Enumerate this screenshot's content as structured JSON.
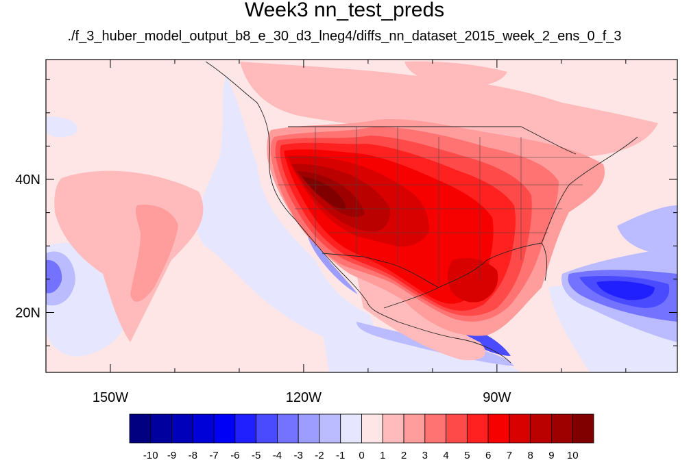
{
  "title": "Week3 nn_test_preds",
  "subtitle": "./f_3_huber_model_output_b8_e_30_d3_lneg4/diffs_nn_dataset_2015_week_2_ens_0_f_3",
  "map": {
    "lon_range": [
      -160,
      -62
    ],
    "lat_range": [
      11,
      58
    ],
    "lon_ticks": [
      {
        "value": -150,
        "label": "150W"
      },
      {
        "value": -120,
        "label": "120W"
      },
      {
        "value": -90,
        "label": "90W"
      }
    ],
    "lat_ticks": [
      {
        "value": 40,
        "label": "40N"
      },
      {
        "value": 20,
        "label": "20N"
      }
    ],
    "ocean_background_color": "#ffe6e6"
  },
  "colorbar": {
    "labels": [
      "-10",
      "-9",
      "-8",
      "-7",
      "-6",
      "-5",
      "-4",
      "-3",
      "-2",
      "-1",
      "0",
      "1",
      "2",
      "3",
      "4",
      "5",
      "6",
      "7",
      "8",
      "9",
      "10"
    ],
    "colors": [
      "#000080",
      "#00009e",
      "#0000bb",
      "#0000d9",
      "#0000f6",
      "#2020ff",
      "#4a4aff",
      "#7373ff",
      "#9d9dff",
      "#bbbbff",
      "#e6e6ff",
      "#ffe6e6",
      "#ffbbbb",
      "#ff9d9d",
      "#ff7373",
      "#ff4a4a",
      "#ff2020",
      "#f60000",
      "#d90000",
      "#bb0000",
      "#9e0000",
      "#800000"
    ]
  }
}
